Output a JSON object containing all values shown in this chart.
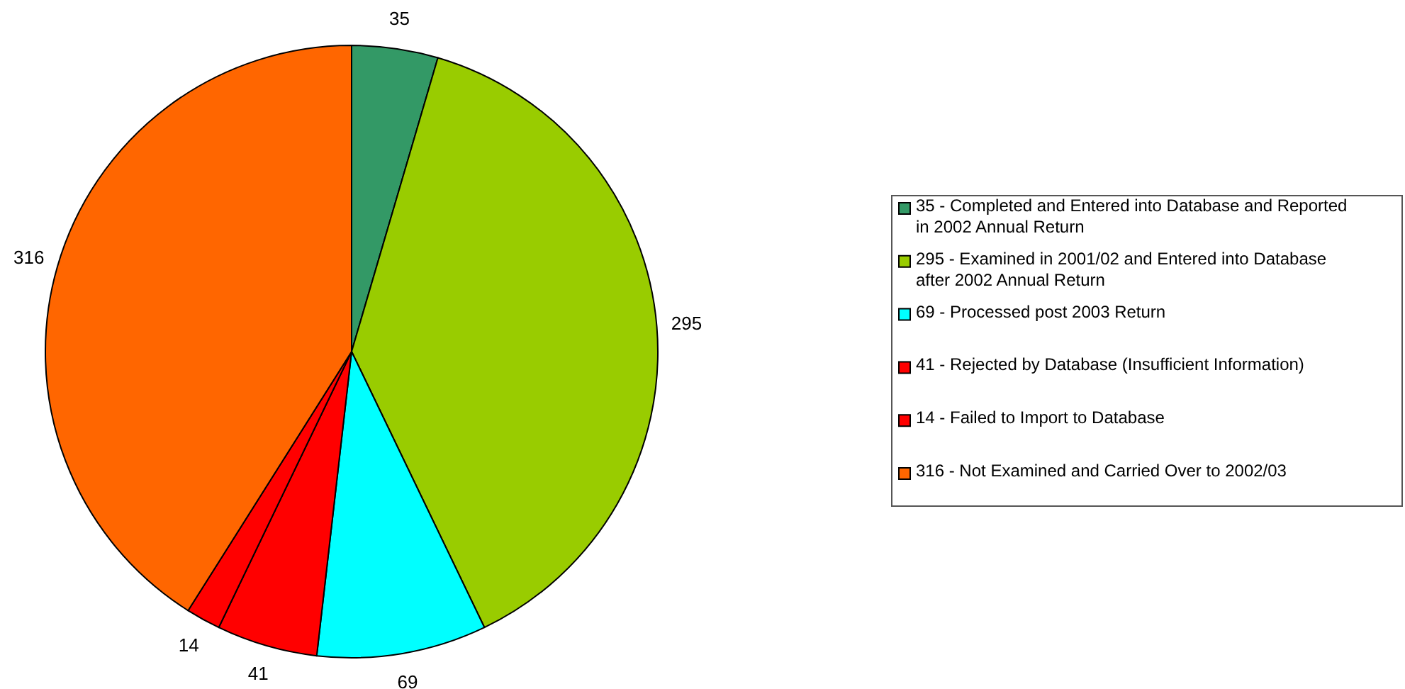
{
  "chart_data": {
    "type": "pie",
    "categories": [
      "35 - Completed and Entered into Database and Reported in 2002 Annual Return",
      "295 - Examined in 2001/02 and Entered into Database after 2002 Annual Return",
      "69 - Processed post 2003 Return",
      "41 - Rejected by Database (Insufficient Information)",
      "14 - Failed to Import to Database",
      "316 - Not Examined and Carried Over to 2002/03"
    ],
    "values": [
      35,
      295,
      69,
      41,
      14,
      316
    ],
    "colors": [
      "#339966",
      "#99cc00",
      "#00ffff",
      "#ff0000",
      "#ff0000",
      "#ff6600"
    ],
    "data_labels": true,
    "legend": "right"
  }
}
